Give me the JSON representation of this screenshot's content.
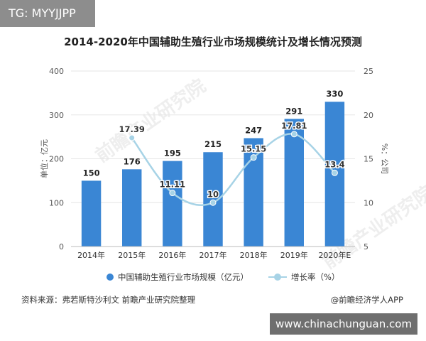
{
  "tag": "TG: MYYJJPP",
  "website": "www.chinachunguan.com",
  "watermark": "前瞻产业研究院",
  "source": "资料来源：弗若斯特沙利文 前瞻产业研究院整理",
  "credit": "@前瞻经济学人APP",
  "colors": {
    "bar": "#3a86d4",
    "line": "#a7d3e6",
    "axis_text": "#555555",
    "grid": "#e6e6e6"
  },
  "chart_data": {
    "type": "bar",
    "title": "2014-2020年中国辅助生殖行业市场规模统计及增长情况预测",
    "categories": [
      "2014年",
      "2015年",
      "2016年",
      "2017年",
      "2018年",
      "2019年",
      "2020年E"
    ],
    "ylabel": "单位：亿元",
    "y2label": "%：公司",
    "ylim": [
      0,
      400
    ],
    "yticks": [
      0,
      100,
      200,
      300,
      400
    ],
    "y2lim": [
      5,
      25
    ],
    "y2ticks": [
      5,
      10,
      15,
      20,
      25
    ],
    "grid": true,
    "legend_position": "bottom",
    "series": [
      {
        "name": "中国辅助生殖行业市场规模（亿元）",
        "type": "bar",
        "axis": "left",
        "values": [
          150,
          176,
          195,
          215,
          247,
          291,
          330
        ],
        "labels": [
          "150",
          "176",
          "195",
          "215",
          "247",
          "291",
          "330"
        ]
      },
      {
        "name": "增长率（%）",
        "type": "line",
        "axis": "right",
        "values": [
          null,
          17.39,
          11.11,
          10,
          15.15,
          17.81,
          13.4
        ],
        "labels": [
          "",
          "17.39",
          "11.11",
          "10",
          "15.15",
          "17.81",
          "13.4"
        ]
      }
    ]
  }
}
